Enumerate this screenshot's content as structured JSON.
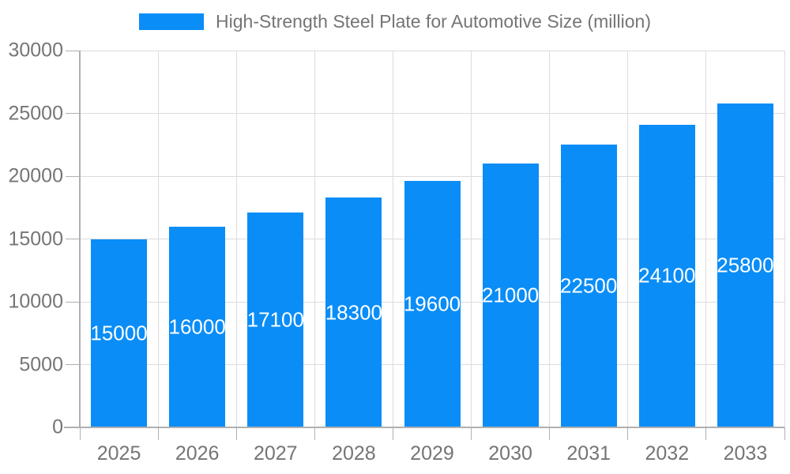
{
  "chart_data": {
    "type": "bar",
    "title": "High-Strength Steel Plate for Automotive Size (million)",
    "categories": [
      "2025",
      "2026",
      "2027",
      "2028",
      "2029",
      "2030",
      "2031",
      "2032",
      "2033"
    ],
    "values": [
      15000,
      16000,
      17100,
      18300,
      19600,
      21000,
      22500,
      24100,
      25800
    ],
    "series_name": "High-Strength Steel Plate for Automotive Size (million)",
    "xlabel": "",
    "ylabel": "",
    "ylim": [
      0,
      30000
    ],
    "ytick_step": 5000,
    "yticks": [
      0,
      5000,
      10000,
      15000,
      20000,
      25000,
      30000
    ],
    "grid": true,
    "legend_position": "top-center",
    "value_labels": "inside-center",
    "colors": {
      "bar": "#0a8df7",
      "grid": "#dcdcdc",
      "axis": "#b0b0b0",
      "text": "#757575",
      "value_text": "#ffffff",
      "background": "#ffffff"
    }
  }
}
